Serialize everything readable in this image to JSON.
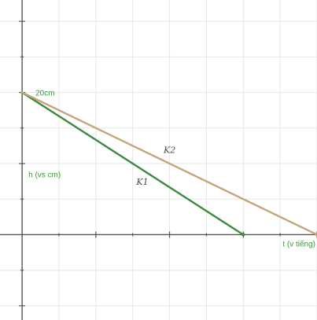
{
  "chart_data": {
    "type": "line",
    "title": "",
    "xlabel": "t (v tiếng)",
    "ylabel": "h (vs cm)",
    "xlim": [
      -3,
      40
    ],
    "ylim": [
      -12,
      33
    ],
    "grid": true,
    "legend": "none",
    "annotations": [
      {
        "text": "20cm",
        "x": 0,
        "y": 20
      }
    ],
    "series": [
      {
        "name": "K1",
        "color": "#3d8a3d",
        "points": [
          [
            0,
            20
          ],
          [
            30,
            0
          ]
        ],
        "label_at": [
          15.5,
          7
        ]
      },
      {
        "name": "K2",
        "color": "#c3a57b",
        "points": [
          [
            0,
            20
          ],
          [
            40,
            0
          ]
        ],
        "label_at": [
          19.2,
          11.5
        ]
      }
    ]
  }
}
